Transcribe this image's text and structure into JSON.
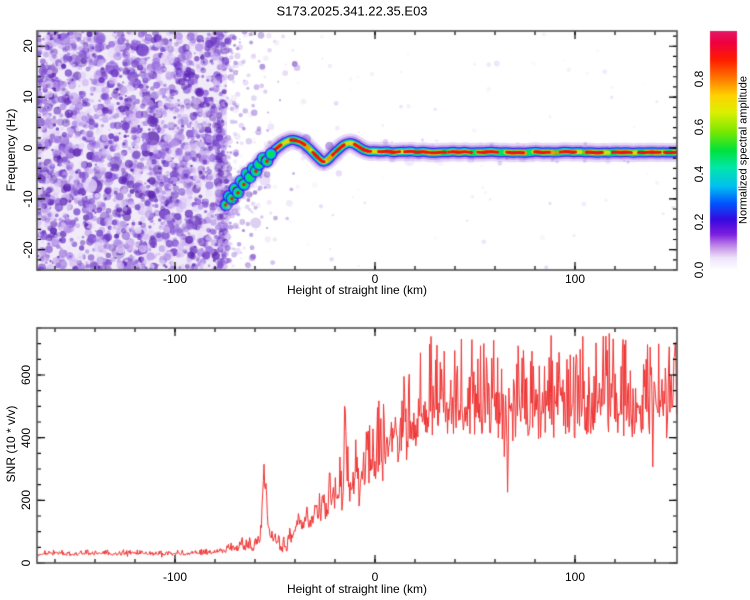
{
  "figure": {
    "title": "S173.2025.341.22.35.E03",
    "background": "#ffffff",
    "frame_color": "#4f4f4f",
    "tick_color": "#000000"
  },
  "chart_data": [
    {
      "type": "heatmap",
      "name": "doppler-spectrogram",
      "xlabel": "Height of straight line (km)",
      "ylabel": "Frequency (Hz)",
      "xlim": [
        -169,
        151
      ],
      "ylim": [
        -24,
        23
      ],
      "xticks": {
        "major": [
          -100,
          0,
          100
        ],
        "labels": [
          "-100",
          "0",
          "100"
        ],
        "minor_step": 20
      },
      "yticks": {
        "major": [
          -20,
          -10,
          0,
          10,
          20
        ],
        "labels": [
          "-20",
          "-10",
          "0",
          "10",
          "20"
        ],
        "minor_step": 2
      },
      "colorbar": {
        "label": "Normalized spectral amplitude",
        "range": [
          0,
          1
        ],
        "ticks": [
          0.0,
          0.2,
          0.4,
          0.6,
          0.8
        ],
        "tick_labels": [
          "0.0",
          "0.2",
          "0.4",
          "0.6",
          "0.8"
        ],
        "stops": [
          [
            0.0,
            "#ffffff"
          ],
          [
            0.05,
            "#efe4fa"
          ],
          [
            0.1,
            "#c08ae8"
          ],
          [
            0.15,
            "#7d1ede"
          ],
          [
            0.21,
            "#3708e0"
          ],
          [
            0.28,
            "#0056ff"
          ],
          [
            0.35,
            "#00c0f0"
          ],
          [
            0.43,
            "#00e8a8"
          ],
          [
            0.5,
            "#00e23c"
          ],
          [
            0.58,
            "#7ce800"
          ],
          [
            0.66,
            "#dcf000"
          ],
          [
            0.73,
            "#ffd200"
          ],
          [
            0.8,
            "#ff7a00"
          ],
          [
            0.88,
            "#ff1c00"
          ],
          [
            0.95,
            "#f0003e"
          ],
          [
            1.0,
            "#e41866"
          ]
        ]
      },
      "noise_region": {
        "x_range_km": [
          -169,
          -74
        ],
        "fade_to_km": -38,
        "base_tint": "#f1ebf9",
        "palette": [
          "#5a23b0",
          "#6a35c2",
          "#7e4fd0",
          "#9a6fe0",
          "#b591ea",
          "#d0b6f2",
          "#e4d4f8"
        ],
        "description": "dense purple speckle noise filling left portion, thinning out rightward"
      },
      "trace": {
        "description": "meteor head echo: wiggly high-amplitude ridge, red core with green/cyan/blue/purple halo, flattening near -0.8 Hz",
        "halo_layers": [
          {
            "color": "#8a4fd8",
            "width": 19,
            "alpha": 0.22
          },
          {
            "color": "#7a30d0",
            "width": 14,
            "alpha": 0.35
          },
          {
            "color": "#3a10e8",
            "width": 10,
            "alpha": 0.9
          },
          {
            "color": "#00c4f5",
            "width": 7.5,
            "alpha": 1
          },
          {
            "color": "#00e455",
            "width": 5.2,
            "alpha": 1
          }
        ],
        "core_colors": {
          "yellow": "#ffd800",
          "orange": "#ff8800",
          "red": "#ee1212"
        },
        "points_km_hz": [
          [
            -74.5,
            -11.2
          ],
          [
            -73,
            -9.5
          ],
          [
            -71.5,
            -10
          ],
          [
            -70,
            -8
          ],
          [
            -68.5,
            -8.8
          ],
          [
            -67,
            -6.5
          ],
          [
            -65.5,
            -7.2
          ],
          [
            -64,
            -5
          ],
          [
            -62.5,
            -5.8
          ],
          [
            -61,
            -4
          ],
          [
            -59.5,
            -4.6
          ],
          [
            -58,
            -3.2
          ],
          [
            -56,
            -2
          ],
          [
            -54,
            -2.6
          ],
          [
            -52,
            -1.2
          ],
          [
            -50,
            -0.3
          ],
          [
            -48,
            0.3
          ],
          [
            -46,
            0.9
          ],
          [
            -44,
            1.3
          ],
          [
            -42,
            1.6
          ],
          [
            -40,
            1.5
          ],
          [
            -38,
            1.3
          ],
          [
            -36,
            0.9
          ],
          [
            -34,
            0.3
          ],
          [
            -32,
            -0.5
          ],
          [
            -30,
            -1.3
          ],
          [
            -28,
            -2.1
          ],
          [
            -26,
            -2.8
          ],
          [
            -24,
            -2.5
          ],
          [
            -22,
            -1.7
          ],
          [
            -20,
            -0.9
          ],
          [
            -18,
            -0.2
          ],
          [
            -16,
            0.5
          ],
          [
            -14,
            0.9
          ],
          [
            -12,
            1.0
          ],
          [
            -10,
            0.7
          ],
          [
            -8,
            0.2
          ],
          [
            -6,
            -0.3
          ],
          [
            -4,
            -0.6
          ],
          [
            -2,
            -0.7
          ],
          [
            0,
            -0.6
          ],
          [
            3,
            -0.8
          ],
          [
            6,
            -0.6
          ],
          [
            9,
            -0.9
          ],
          [
            12,
            -0.7
          ],
          [
            15,
            -0.8
          ],
          [
            18,
            -0.6
          ],
          [
            21,
            -0.9
          ],
          [
            24,
            -0.7
          ],
          [
            27,
            -0.9
          ],
          [
            30,
            -1.0
          ],
          [
            33,
            -0.8
          ],
          [
            36,
            -0.9
          ],
          [
            39,
            -0.7
          ],
          [
            42,
            -0.9
          ],
          [
            45,
            -0.7
          ],
          [
            48,
            -0.95
          ],
          [
            51,
            -0.8
          ],
          [
            54,
            -0.9
          ],
          [
            57,
            -0.7
          ],
          [
            60,
            -0.8
          ],
          [
            63,
            -0.9
          ],
          [
            66,
            -0.8
          ],
          [
            69,
            -1.0
          ],
          [
            72,
            -0.85
          ],
          [
            75,
            -1.0
          ],
          [
            78,
            -0.8
          ],
          [
            81,
            -0.75
          ],
          [
            84,
            -0.9
          ],
          [
            87,
            -0.8
          ],
          [
            90,
            -0.95
          ],
          [
            93,
            -0.8
          ],
          [
            96,
            -0.7
          ],
          [
            99,
            -0.85
          ],
          [
            102,
            -0.75
          ],
          [
            105,
            -0.9
          ],
          [
            108,
            -0.8
          ],
          [
            111,
            -1.0
          ],
          [
            114,
            -0.85
          ],
          [
            117,
            -0.95
          ],
          [
            120,
            -0.8
          ],
          [
            123,
            -0.9
          ],
          [
            126,
            -0.8
          ],
          [
            129,
            -0.95
          ],
          [
            132,
            -0.85
          ],
          [
            135,
            -0.9
          ],
          [
            138,
            -0.8
          ],
          [
            141,
            -0.9
          ],
          [
            144,
            -0.85
          ],
          [
            147,
            -0.9
          ],
          [
            151,
            -0.85
          ]
        ]
      }
    },
    {
      "type": "line",
      "name": "snr-profile",
      "xlabel": "Height of straight line (km)",
      "ylabel": "SNR (10 * v/v)",
      "xlim": [
        -169,
        151
      ],
      "ylim": [
        0,
        750
      ],
      "xticks": {
        "major": [
          -100,
          0,
          100
        ],
        "labels": [
          "-100",
          "0",
          "100"
        ],
        "minor_step": 20
      },
      "yticks": {
        "major": [
          0,
          200,
          400,
          600
        ],
        "labels": [
          "0",
          "200",
          "400",
          "600"
        ],
        "minor_step": 50
      },
      "line_color": "#ee3333",
      "series": {
        "name": "SNR",
        "anchors_km_value": [
          [
            -169,
            28
          ],
          [
            -160,
            30
          ],
          [
            -150,
            27
          ],
          [
            -140,
            31
          ],
          [
            -130,
            29
          ],
          [
            -120,
            32
          ],
          [
            -110,
            28
          ],
          [
            -100,
            30
          ],
          [
            -90,
            30
          ],
          [
            -84,
            32
          ],
          [
            -78,
            36
          ],
          [
            -74,
            42
          ],
          [
            -71,
            50
          ],
          [
            -69,
            44
          ],
          [
            -67,
            58
          ],
          [
            -65,
            46
          ],
          [
            -63,
            52
          ],
          [
            -61,
            48
          ],
          [
            -59,
            62
          ],
          [
            -57,
            90
          ],
          [
            -55.5,
            320
          ],
          [
            -55,
            200
          ],
          [
            -54.5,
            260
          ],
          [
            -53.5,
            120
          ],
          [
            -52,
            70
          ],
          [
            -50,
            85
          ],
          [
            -48,
            60
          ],
          [
            -46,
            48
          ],
          [
            -44,
            55
          ],
          [
            -42,
            75
          ],
          [
            -40,
            110
          ],
          [
            -38,
            150
          ],
          [
            -36,
            100
          ],
          [
            -34,
            170
          ],
          [
            -32,
            120
          ],
          [
            -30,
            190
          ],
          [
            -28,
            140
          ],
          [
            -26,
            210
          ],
          [
            -24,
            160
          ],
          [
            -22,
            215
          ],
          [
            -20,
            170
          ],
          [
            -18,
            235
          ],
          [
            -16,
            190
          ],
          [
            -15,
            545
          ],
          [
            -14,
            260
          ],
          [
            -12,
            215
          ],
          [
            -10,
            290
          ],
          [
            -8,
            235
          ],
          [
            -6,
            305
          ],
          [
            -4,
            265
          ],
          [
            -2,
            335
          ],
          [
            0,
            305
          ],
          [
            2,
            365
          ],
          [
            4,
            330
          ],
          [
            6,
            395
          ],
          [
            8,
            355
          ],
          [
            10,
            425
          ],
          [
            12,
            385
          ],
          [
            14,
            455
          ],
          [
            16,
            405
          ],
          [
            18,
            470
          ],
          [
            20,
            435
          ],
          [
            22,
            490
          ],
          [
            25,
            465
          ],
          [
            28,
            500
          ],
          [
            30,
            485
          ],
          [
            33,
            505
          ],
          [
            36,
            490
          ],
          [
            40,
            505
          ],
          [
            44,
            492
          ],
          [
            48,
            508
          ],
          [
            52,
            495
          ],
          [
            56,
            502
          ],
          [
            60,
            488
          ],
          [
            63,
            478
          ],
          [
            65,
            315
          ],
          [
            67,
            470
          ],
          [
            70,
            498
          ],
          [
            74,
            490
          ],
          [
            78,
            505
          ],
          [
            82,
            494
          ],
          [
            86,
            502
          ],
          [
            90,
            496
          ],
          [
            94,
            508
          ],
          [
            98,
            492
          ],
          [
            102,
            500
          ],
          [
            106,
            494
          ],
          [
            110,
            502
          ],
          [
            114,
            490
          ],
          [
            118,
            500
          ],
          [
            122,
            494
          ],
          [
            126,
            502
          ],
          [
            130,
            492
          ],
          [
            134,
            500
          ],
          [
            138,
            494
          ],
          [
            142,
            502
          ],
          [
            146,
            492
          ],
          [
            151,
            498
          ]
        ],
        "jitter_km_amp": [
          [
            -169,
            9
          ],
          [
            -80,
            10
          ],
          [
            -70,
            18
          ],
          [
            -58,
            25
          ],
          [
            -50,
            22
          ],
          [
            -42,
            40
          ],
          [
            -30,
            70
          ],
          [
            -20,
            85
          ],
          [
            -14,
            95
          ],
          [
            -6,
            110
          ],
          [
            0,
            120
          ],
          [
            10,
            140
          ],
          [
            20,
            160
          ],
          [
            30,
            175
          ],
          [
            40,
            180
          ],
          [
            151,
            180
          ]
        ]
      }
    }
  ]
}
